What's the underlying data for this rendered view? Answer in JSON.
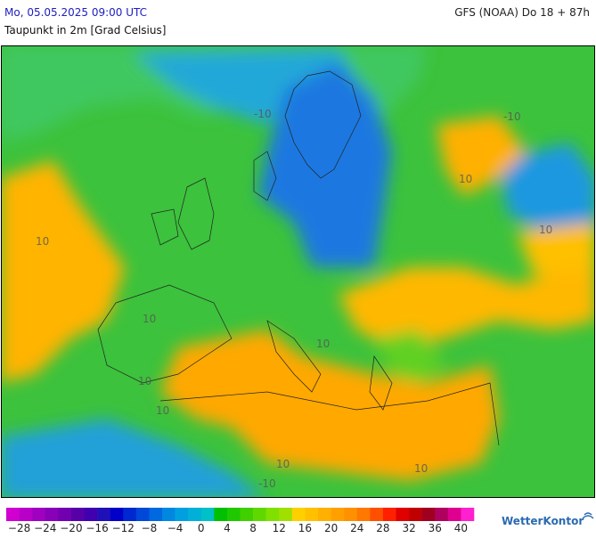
{
  "header": {
    "datetime": "Mo, 05.05.2025 09:00 UTC",
    "model": "GFS (NOAA) Do 18 + 87h",
    "subtitle": "Taupunkt in 2m [Grad Celsius]"
  },
  "map": {
    "contour_labels": [
      "10",
      "10",
      "10",
      "10",
      "10",
      "10",
      "10",
      "10",
      "10",
      "-10",
      "-10",
      "-10"
    ]
  },
  "legend": {
    "range": [
      -30,
      42
    ],
    "colors": [
      "#d000d0",
      "#b800c8",
      "#a000c0",
      "#8800b8",
      "#7000b0",
      "#5800a8",
      "#4000b0",
      "#2010b8",
      "#0000c8",
      "#0028d0",
      "#0048d8",
      "#0068e0",
      "#0088e0",
      "#00a0e0",
      "#00b0d8",
      "#00c0c8",
      "#00c000",
      "#20c800",
      "#40d000",
      "#60d800",
      "#80e000",
      "#a0e000",
      "#ffd000",
      "#ffc000",
      "#ffb000",
      "#ffa000",
      "#ff9000",
      "#ff7800",
      "#ff5000",
      "#ff2000",
      "#e00000",
      "#c00000",
      "#a00020",
      "#b00060",
      "#e00090",
      "#ff20d0"
    ],
    "ticks": [
      {
        "value": -28,
        "label": "−28"
      },
      {
        "value": -24,
        "label": "−24"
      },
      {
        "value": -20,
        "label": "−20"
      },
      {
        "value": -16,
        "label": "−16"
      },
      {
        "value": -12,
        "label": "−12"
      },
      {
        "value": -8,
        "label": "−8"
      },
      {
        "value": -4,
        "label": "−4"
      },
      0,
      4,
      8,
      12,
      16,
      20,
      24,
      28,
      32,
      36,
      40
    ]
  },
  "brand": "WetterKontor"
}
